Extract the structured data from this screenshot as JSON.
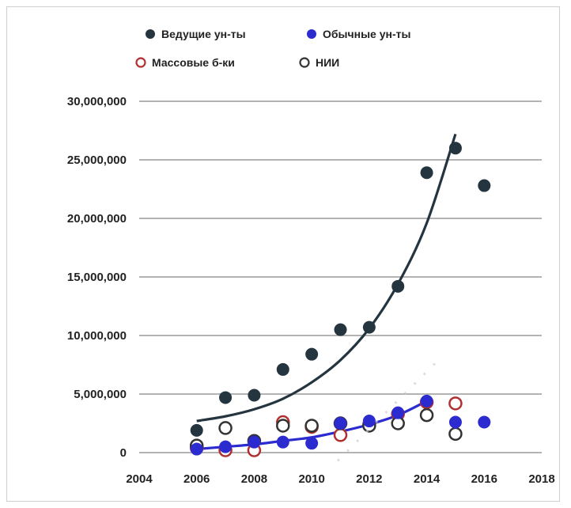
{
  "chart_data": {
    "type": "scatter",
    "title": "",
    "xlabel": "",
    "ylabel": "",
    "xlim": [
      2004,
      2018
    ],
    "ylim": [
      0,
      30000000
    ],
    "x_ticks": [
      "2004",
      "2006",
      "2008",
      "2010",
      "2012",
      "2014",
      "2016",
      "2018"
    ],
    "y_ticks": [
      "0",
      "5,000,000",
      "10,000,000",
      "15,000,000",
      "20,000,000",
      "25,000,000",
      "30,000,000"
    ],
    "grid": "horizontal",
    "legend_position": "top-left",
    "series": [
      {
        "name": "Ведущие ун-ты",
        "marker": "filled-circle",
        "color": "#243540",
        "points": [
          [
            2006,
            1900000
          ],
          [
            2007,
            4700000
          ],
          [
            2008,
            4900000
          ],
          [
            2009,
            7100000
          ],
          [
            2010,
            8400000
          ],
          [
            2011,
            10500000
          ],
          [
            2012,
            10700000
          ],
          [
            2013,
            14200000
          ],
          [
            2014,
            23900000
          ],
          [
            2015,
            26000000
          ],
          [
            2016,
            22800000
          ]
        ],
        "trendline": [
          [
            2006,
            2700000
          ],
          [
            2007,
            3100000
          ],
          [
            2008,
            3700000
          ],
          [
            2009,
            4600000
          ],
          [
            2010,
            6000000
          ],
          [
            2011,
            7900000
          ],
          [
            2012,
            10600000
          ],
          [
            2013,
            14400000
          ],
          [
            2014,
            19600000
          ],
          [
            2015,
            27200000
          ]
        ]
      },
      {
        "name": "Обычные ун-ты",
        "marker": "filled-circle",
        "color": "#2b2bd0",
        "points": [
          [
            2006,
            300000
          ],
          [
            2007,
            500000
          ],
          [
            2008,
            900000
          ],
          [
            2009,
            900000
          ],
          [
            2010,
            800000
          ],
          [
            2011,
            2500000
          ],
          [
            2012,
            2700000
          ],
          [
            2013,
            3400000
          ],
          [
            2014,
            4400000
          ],
          [
            2015,
            2600000
          ],
          [
            2016,
            2600000
          ]
        ],
        "trendline": [
          [
            2006,
            300000
          ],
          [
            2007,
            500000
          ],
          [
            2008,
            700000
          ],
          [
            2009,
            1000000
          ],
          [
            2010,
            1300000
          ],
          [
            2011,
            1800000
          ],
          [
            2012,
            2400000
          ],
          [
            2013,
            3200000
          ],
          [
            2014,
            4400000
          ]
        ]
      },
      {
        "name": "Массовые б-ки",
        "marker": "open-circle",
        "color": "#b03030",
        "points": [
          [
            2006,
            400000
          ],
          [
            2007,
            200000
          ],
          [
            2008,
            200000
          ],
          [
            2009,
            2600000
          ],
          [
            2010,
            2200000
          ],
          [
            2011,
            1500000
          ],
          [
            2012,
            2400000
          ],
          [
            2013,
            3300000
          ],
          [
            2014,
            4300000
          ],
          [
            2015,
            4200000
          ]
        ]
      },
      {
        "name": "НИИ",
        "marker": "open-circle",
        "color": "#333333",
        "points": [
          [
            2006,
            600000
          ],
          [
            2007,
            2100000
          ],
          [
            2008,
            1000000
          ],
          [
            2009,
            2300000
          ],
          [
            2010,
            2300000
          ],
          [
            2011,
            2500000
          ],
          [
            2012,
            2300000
          ],
          [
            2013,
            2500000
          ],
          [
            2014,
            3200000
          ],
          [
            2015,
            1600000
          ]
        ]
      }
    ]
  }
}
